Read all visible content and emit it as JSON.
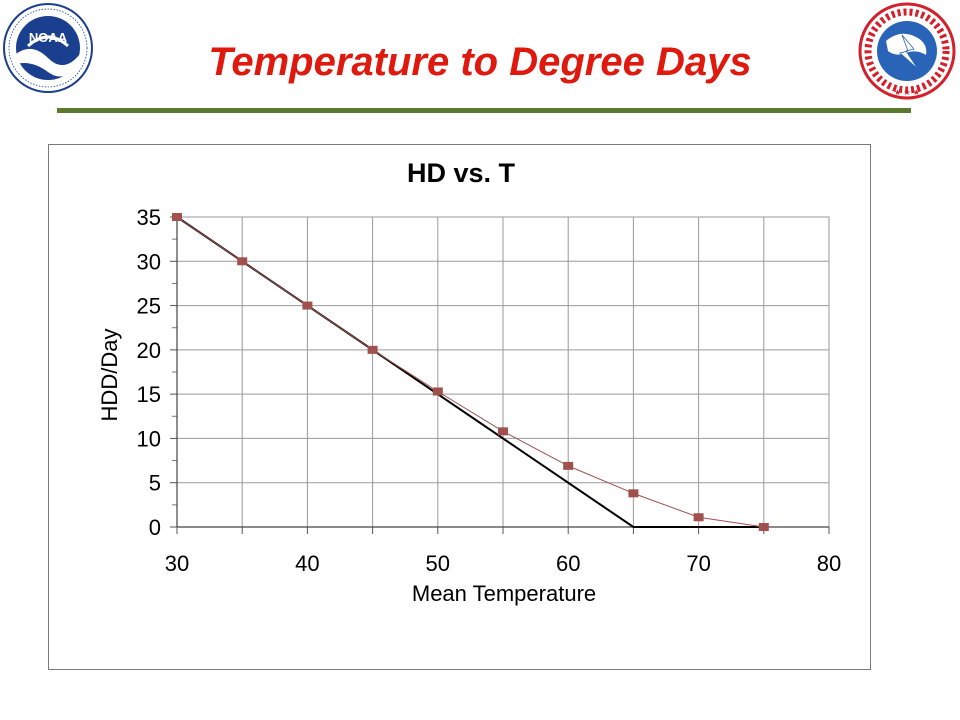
{
  "slide": {
    "title": "Temperature to Degree Days",
    "title_color": "#e0190f",
    "rule_color": "#5b7a2e"
  },
  "logos": {
    "left": {
      "icon": "noaa-logo",
      "text": "NOAA",
      "ring_text": "NATIONAL OCEANIC AND ATMOSPHERIC ADMINISTRATION · U.S. DEPARTMENT OF COMMERCE"
    },
    "right": {
      "icon": "national-weather-service-logo",
      "ring_text": "NATIONAL WEATHER SERVICE"
    }
  },
  "chart_data": {
    "type": "line",
    "title": "HD vs. T",
    "xlabel": "Mean Temperature",
    "ylabel": "HDD/Day",
    "xlim": [
      30,
      80
    ],
    "ylim": [
      0,
      35
    ],
    "x_ticks": [
      30,
      40,
      50,
      60,
      70,
      80
    ],
    "x_gridlines": [
      30,
      35,
      40,
      45,
      50,
      55,
      60,
      65,
      70,
      75,
      80
    ],
    "y_ticks": [
      0,
      5,
      10,
      15,
      20,
      25,
      30,
      35
    ],
    "grid": true,
    "legend": "none",
    "series": [
      {
        "style": "line",
        "color": "#000000",
        "x": [
          30,
          65,
          75
        ],
        "y": [
          35,
          0,
          0
        ]
      },
      {
        "style": "line-with-square-markers",
        "color": "#a0504d",
        "x": [
          30,
          35,
          40,
          45,
          50,
          55,
          60,
          65,
          70,
          75
        ],
        "y": [
          35,
          30,
          25,
          20,
          15.3,
          10.8,
          6.9,
          3.8,
          1.1,
          0
        ]
      }
    ]
  }
}
